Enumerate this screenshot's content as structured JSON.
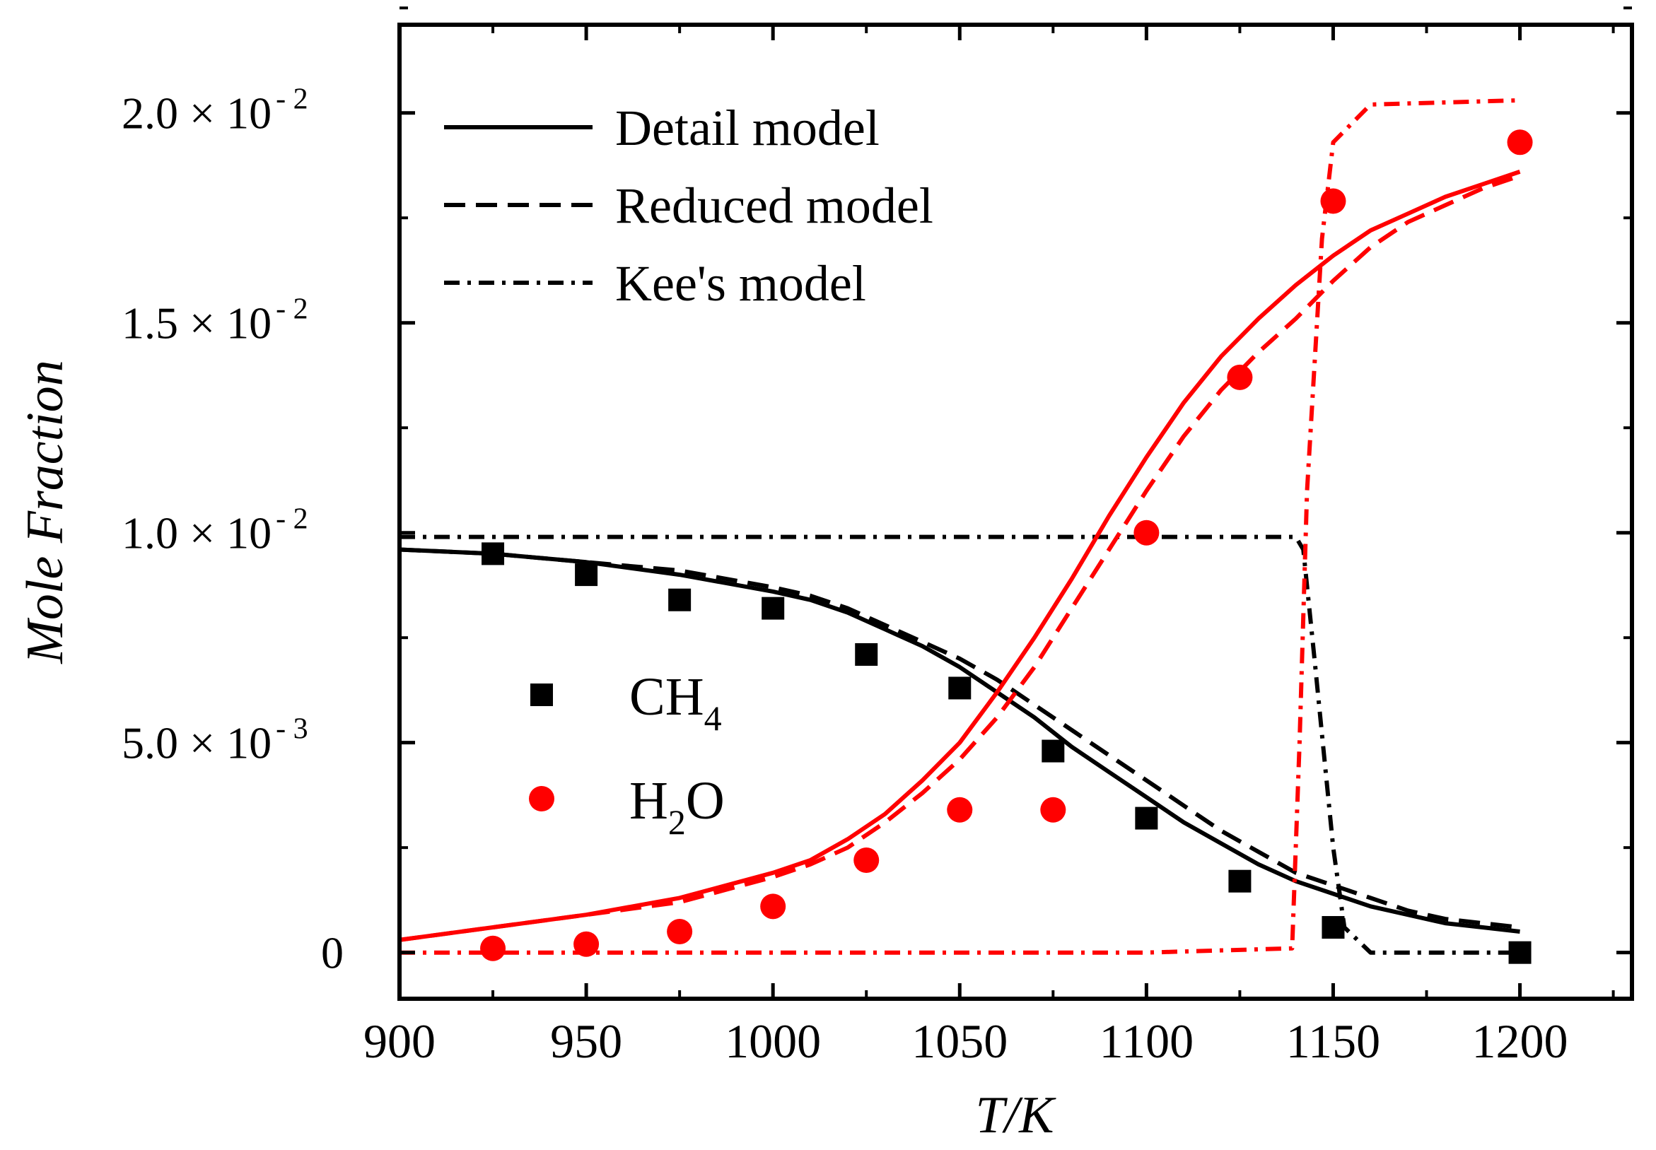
{
  "chart_data": {
    "type": "line",
    "title": "",
    "xlabel": "T/K",
    "ylabel": "Mole Fraction",
    "xlim": [
      900,
      1230
    ],
    "ylim": [
      -0.0011,
      0.0221
    ],
    "x_ticks": [
      900,
      950,
      1000,
      1050,
      1100,
      1150,
      1200
    ],
    "x_tick_labels": [
      "900",
      "950",
      "1000",
      "1050",
      "1100",
      "1150",
      "1200"
    ],
    "y_ticks": [
      0,
      0.005,
      0.01,
      0.015,
      0.02
    ],
    "y_tick_labels": [
      {
        "mantissa": "0",
        "times": "",
        "base": "",
        "exponent": ""
      },
      {
        "mantissa": "5.0",
        "times": "×",
        "base": "10",
        "exponent": "- 3"
      },
      {
        "mantissa": "1.0",
        "times": "×",
        "base": "10",
        "exponent": "- 2"
      },
      {
        "mantissa": "1.5",
        "times": "×",
        "base": "10",
        "exponent": "- 2"
      },
      {
        "mantissa": "2.0",
        "times": "×",
        "base": "10",
        "exponent": "- 2"
      }
    ],
    "legend": {
      "position": "top-left",
      "entries": [
        {
          "label": "Detail model",
          "style": "solid"
        },
        {
          "label": "Reduced model",
          "style": "dashed"
        },
        {
          "label": "Kee's model",
          "style": "dashdot"
        }
      ]
    },
    "species_legend": {
      "position": "center-left",
      "entries": [
        {
          "base": "CH",
          "sub": "4",
          "tail": "",
          "marker": "square",
          "color": "#000000"
        },
        {
          "base": "H",
          "sub": "2",
          "tail": "O",
          "marker": "circle",
          "color": "#ff0000"
        }
      ]
    },
    "series": [
      {
        "name": "CH4 Detail model",
        "color": "#000000",
        "style": "solid",
        "x": [
          900,
          925,
          950,
          975,
          1000,
          1010,
          1020,
          1030,
          1040,
          1050,
          1060,
          1070,
          1080,
          1090,
          1100,
          1110,
          1120,
          1130,
          1140,
          1150,
          1160,
          1170,
          1180,
          1190,
          1200
        ],
        "y": [
          0.0096,
          0.0095,
          0.0093,
          0.009,
          0.0086,
          0.0084,
          0.0081,
          0.0077,
          0.0073,
          0.0068,
          0.0062,
          0.0056,
          0.0049,
          0.0043,
          0.0037,
          0.0031,
          0.0026,
          0.0021,
          0.0017,
          0.0014,
          0.0011,
          0.0009,
          0.0007,
          0.0006,
          0.0005
        ]
      },
      {
        "name": "CH4 Reduced model",
        "color": "#000000",
        "style": "dashed",
        "x": [
          900,
          925,
          950,
          975,
          1000,
          1010,
          1020,
          1030,
          1040,
          1050,
          1060,
          1070,
          1080,
          1090,
          1100,
          1110,
          1120,
          1130,
          1140,
          1150,
          1160,
          1170,
          1180,
          1190,
          1200
        ],
        "y": [
          0.0096,
          0.0095,
          0.0093,
          0.0091,
          0.0087,
          0.0085,
          0.0082,
          0.0078,
          0.0074,
          0.007,
          0.0065,
          0.0059,
          0.0053,
          0.0047,
          0.0041,
          0.0035,
          0.0029,
          0.0024,
          0.0019,
          0.0016,
          0.0013,
          0.001,
          0.0008,
          0.0007,
          0.0006
        ]
      },
      {
        "name": "CH4 Kee's model",
        "color": "#000000",
        "style": "dashdot",
        "x": [
          900,
          1100,
          1140,
          1142,
          1145,
          1150,
          1153,
          1160,
          1200
        ],
        "y": [
          0.0099,
          0.0099,
          0.0099,
          0.0096,
          0.007,
          0.0025,
          0.0006,
          0.0,
          0.0
        ]
      },
      {
        "name": "H2O Detail model",
        "color": "#ff0000",
        "style": "solid",
        "x": [
          900,
          925,
          950,
          975,
          1000,
          1010,
          1020,
          1030,
          1040,
          1050,
          1060,
          1070,
          1080,
          1090,
          1100,
          1110,
          1120,
          1130,
          1140,
          1150,
          1160,
          1170,
          1180,
          1190,
          1200
        ],
        "y": [
          0.0003,
          0.0006,
          0.0009,
          0.0013,
          0.0019,
          0.0022,
          0.0027,
          0.0033,
          0.0041,
          0.005,
          0.0062,
          0.0075,
          0.0089,
          0.0104,
          0.0118,
          0.0131,
          0.0142,
          0.0151,
          0.0159,
          0.0166,
          0.0172,
          0.0176,
          0.018,
          0.0183,
          0.0186
        ]
      },
      {
        "name": "H2O Reduced model",
        "color": "#ff0000",
        "style": "dashed",
        "x": [
          900,
          925,
          950,
          975,
          1000,
          1010,
          1020,
          1030,
          1040,
          1050,
          1060,
          1070,
          1080,
          1090,
          1100,
          1110,
          1120,
          1130,
          1140,
          1150,
          1160,
          1170,
          1180,
          1190,
          1200
        ],
        "y": [
          0.0003,
          0.0006,
          0.0009,
          0.0012,
          0.0018,
          0.0021,
          0.0025,
          0.0031,
          0.0038,
          0.0046,
          0.0056,
          0.0068,
          0.0082,
          0.0096,
          0.011,
          0.0123,
          0.0134,
          0.0143,
          0.0151,
          0.016,
          0.0168,
          0.0174,
          0.0178,
          0.0182,
          0.0185
        ]
      },
      {
        "name": "H2O Kee's model",
        "color": "#ff0000",
        "style": "dashdot",
        "x": [
          900,
          1100,
          1139,
          1141,
          1143,
          1147,
          1150,
          1160,
          1200
        ],
        "y": [
          0.0,
          0.0,
          0.0001,
          0.005,
          0.011,
          0.017,
          0.0193,
          0.0202,
          0.0203
        ]
      },
      {
        "name": "CH4 experiment",
        "color": "#000000",
        "style": "marker-square",
        "x": [
          925,
          950,
          975,
          1000,
          1025,
          1050,
          1075,
          1100,
          1125,
          1150,
          1200
        ],
        "y": [
          0.0095,
          0.009,
          0.0084,
          0.0082,
          0.0071,
          0.0063,
          0.0048,
          0.0032,
          0.0017,
          0.0006,
          0.0
        ]
      },
      {
        "name": "H2O experiment",
        "color": "#ff0000",
        "style": "marker-circle",
        "x": [
          925,
          950,
          975,
          1000,
          1025,
          1050,
          1075,
          1100,
          1125,
          1150,
          1200
        ],
        "y": [
          0.0001,
          0.0002,
          0.0005,
          0.0011,
          0.0022,
          0.0034,
          0.0034,
          0.01,
          0.0137,
          0.0179,
          0.0193
        ]
      }
    ]
  }
}
